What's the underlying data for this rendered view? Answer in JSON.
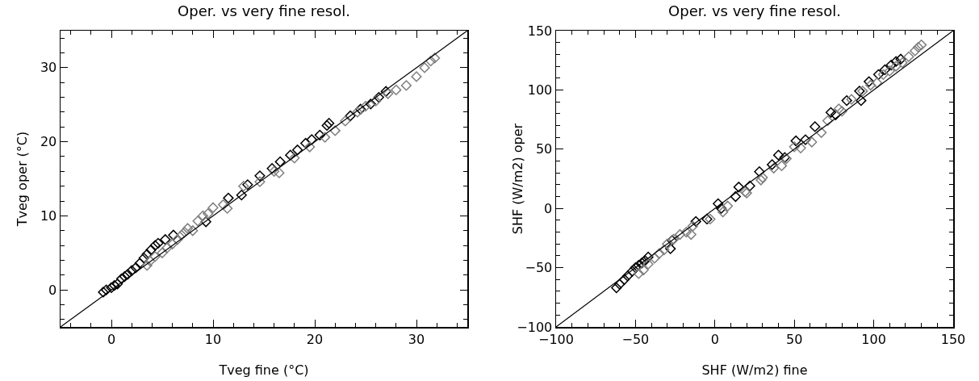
{
  "chart_data": [
    {
      "type": "scatter",
      "title": "Oper. vs very fine resol.",
      "xlabel": "Tveg fine (°C)",
      "ylabel": "Tveg oper (°C)",
      "xlim": [
        -5,
        35
      ],
      "ylim": [
        -5,
        35
      ],
      "xticks": [
        0,
        10,
        20,
        30
      ],
      "yticks": [
        0,
        10,
        20,
        30
      ],
      "grid": false,
      "marker": "diamond",
      "series": [
        {
          "color": "#000000",
          "x": [
            -0.8,
            -0.5,
            0,
            0.3,
            0.6,
            1,
            1.3,
            1.6,
            2,
            2.4,
            2.8,
            3.2,
            3.5,
            3.9,
            4.3,
            4.6,
            5.3,
            6.1,
            9.3,
            11.5,
            12.8,
            13.4,
            14.6,
            15.8,
            16.6,
            17.6,
            18.3,
            19.1,
            19.7,
            20.5,
            21.2,
            21.4,
            23.5,
            24.5,
            25.5,
            26.3,
            27
          ],
          "values": [
            -0.3,
            0,
            0.3,
            0.6,
            0.8,
            1.5,
            1.8,
            2.1,
            2.6,
            3,
            3.6,
            4.3,
            4.8,
            5.4,
            6,
            6.3,
            6.8,
            7.4,
            9.2,
            12.4,
            12.8,
            14.2,
            15.4,
            16.4,
            17.3,
            18.2,
            18.9,
            19.8,
            20.3,
            20.9,
            22.2,
            22.5,
            23.5,
            24.4,
            25.1,
            26,
            26.8
          ]
        },
        {
          "color": "#808080",
          "x": [
            3.5,
            3.8,
            4.3,
            5,
            5.5,
            6,
            6.5,
            6.9,
            7.2,
            7.5,
            8,
            8.5,
            9,
            9.5,
            10,
            11,
            11.4,
            13,
            14.6,
            16,
            16.5,
            18,
            19.5,
            21,
            22,
            23,
            24.2,
            25,
            26,
            27.2,
            28,
            29,
            30,
            30.8,
            31.4,
            31.8
          ],
          "values": [
            3.3,
            3.9,
            4.5,
            5,
            5.7,
            6.2,
            6.8,
            7.4,
            7.8,
            8.3,
            8,
            9.3,
            10,
            10.3,
            11.1,
            11.5,
            11,
            14,
            14.6,
            16,
            15.8,
            17.8,
            19.3,
            20.6,
            21.5,
            22.8,
            24,
            24.8,
            25.5,
            26.5,
            27,
            27.6,
            28.8,
            30,
            30.9,
            31.3
          ]
        },
        {
          "type": "line",
          "color": "#000000",
          "marker": "none",
          "line_style": "solid",
          "x": [
            -5,
            35
          ],
          "values": [
            -5,
            35
          ]
        }
      ]
    },
    {
      "type": "scatter",
      "title": "Oper. vs very fine resol.",
      "xlabel": "SHF (W/m2) fine",
      "ylabel": "SHF (W/m2) oper",
      "xlim": [
        -100,
        150
      ],
      "ylim": [
        -100,
        150
      ],
      "xticks": [
        -100,
        -50,
        0,
        50,
        100,
        150
      ],
      "yticks": [
        -100,
        -50,
        0,
        50,
        100,
        150
      ],
      "grid": false,
      "marker": "diamond",
      "series": [
        {
          "color": "#000000",
          "x": [
            -62,
            -60,
            -57,
            -55,
            -52,
            -50,
            -48,
            -46,
            -44,
            -42,
            -28,
            -27,
            -12,
            -5,
            2,
            4,
            13,
            15,
            22,
            28,
            36,
            40,
            44,
            51,
            57,
            63,
            73,
            76,
            83,
            91,
            92,
            97,
            103,
            107,
            111,
            114,
            117
          ],
          "values": [
            -67,
            -64,
            -60,
            -57,
            -53,
            -50,
            -48,
            -46,
            -44,
            -41,
            -34,
            -27,
            -11,
            -9,
            4,
            0,
            10,
            18,
            19,
            31,
            37,
            45,
            43,
            57,
            58,
            69,
            81,
            79,
            91,
            99,
            91,
            107,
            113,
            117,
            121,
            124,
            126
          ]
        },
        {
          "color": "#808080",
          "x": [
            -48,
            -45,
            -42,
            -38,
            -35,
            -32,
            -30,
            -26,
            -22,
            -18,
            -15,
            -14,
            -3,
            5,
            8,
            19,
            20,
            29,
            30,
            37,
            42,
            45,
            50,
            54,
            61,
            67,
            71,
            78,
            80,
            86,
            93,
            98,
            102,
            106,
            110,
            114,
            118,
            122,
            126,
            128,
            130
          ],
          "values": [
            -55,
            -52,
            -47,
            -42,
            -38,
            -35,
            -30,
            -26,
            -22,
            -20,
            -22,
            -15,
            -9,
            -3,
            2,
            14,
            13,
            24,
            26,
            34,
            36,
            42,
            52,
            51,
            56,
            64,
            74,
            84,
            82,
            92,
            99,
            104,
            106,
            113,
            116,
            120,
            123,
            128,
            133,
            136,
            138
          ]
        },
        {
          "type": "line",
          "color": "#000000",
          "marker": "none",
          "line_style": "solid",
          "x": [
            -100,
            150
          ],
          "values": [
            -100,
            150
          ]
        }
      ]
    }
  ]
}
